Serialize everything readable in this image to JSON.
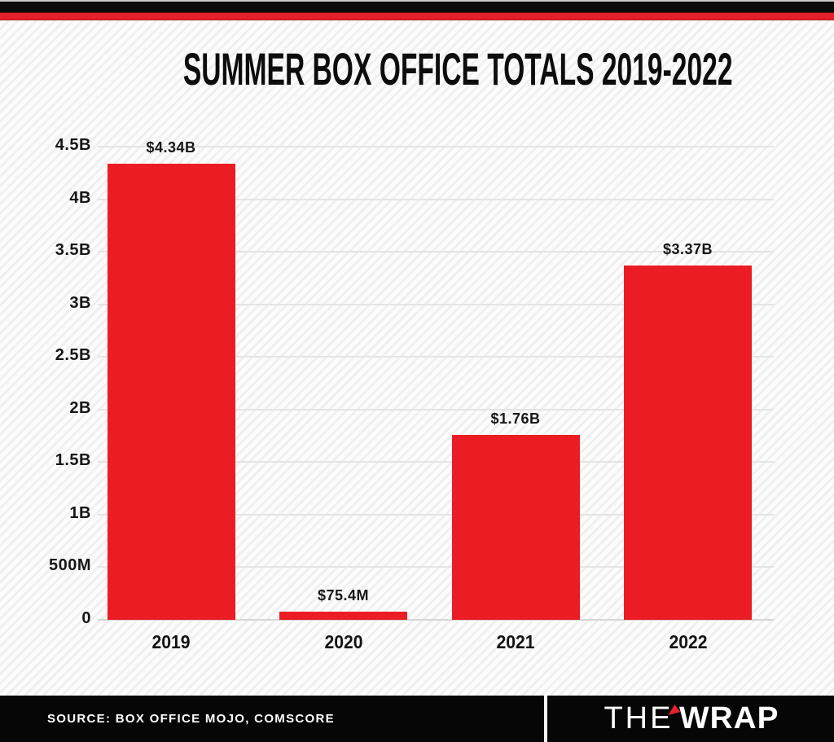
{
  "page": {
    "title": "SUMMER BOX OFFICE TOTALS 2019-2022"
  },
  "chart_data": {
    "type": "bar",
    "title": "SUMMER BOX OFFICE TOTALS 2019-2022",
    "categories": [
      "2019",
      "2020",
      "2021",
      "2022"
    ],
    "values": [
      4340000000,
      75400000,
      1760000000,
      3370000000
    ],
    "value_labels": [
      "$4.34B",
      "$75.4M",
      "$1.76B",
      "$3.37B"
    ],
    "xlabel": "",
    "ylabel": "",
    "ylim": [
      0,
      4500000000
    ],
    "ytick_labels": [
      "4.5B",
      "4B",
      "3.5B",
      "3B",
      "2.5B",
      "2B",
      "1.5B",
      "1B",
      "500M",
      "0"
    ],
    "grid": true,
    "legend": false,
    "bar_color": "#ec1c24"
  },
  "footer": {
    "source": "SOURCE: BOX OFFICE MOJO, COMSCORE",
    "logo": {
      "the": "THE",
      "wrap": "WRAP",
      "mark": "red-flag-icon"
    }
  },
  "colors": {
    "bar_red": "#ec1c24",
    "trim_red": "#e3212b",
    "trim_black": "#0b0b0b",
    "footer_black": "#060606",
    "gridline": "#e4e4e4",
    "text": "#131313",
    "background_stripe": "#f0f0f0"
  }
}
